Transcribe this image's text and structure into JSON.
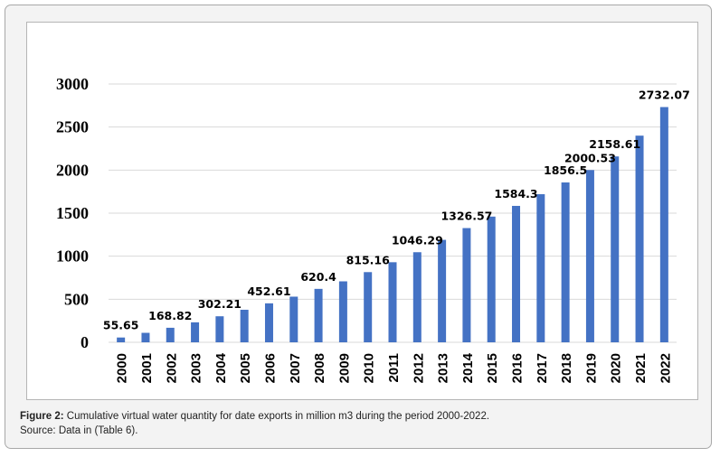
{
  "caption": {
    "label": "Figure 2:",
    "text": "Cumulative virtual water quantity for date exports in million m3 during the period 2000-2022.",
    "source": "Source: Data in (Table 6)."
  },
  "colors": {
    "bar": "#4472c4",
    "grid": "#d9d9d9",
    "text": "#000000"
  },
  "chart_data": {
    "type": "bar",
    "title": "",
    "xlabel": "",
    "ylabel": "",
    "ylim": [
      0,
      3000
    ],
    "yticks": [
      0,
      500,
      1000,
      1500,
      2000,
      2500,
      3000
    ],
    "grid": true,
    "categories": [
      "2000",
      "2001",
      "2002",
      "2003",
      "2004",
      "2005",
      "2006",
      "2007",
      "2008",
      "2009",
      "2010",
      "2011",
      "2012",
      "2013",
      "2014",
      "2015",
      "2016",
      "2017",
      "2018",
      "2019",
      "2020",
      "2021",
      "2022"
    ],
    "values": [
      55.65,
      110,
      168.82,
      232,
      302.21,
      378,
      452.61,
      530,
      620.4,
      708,
      815.16,
      930,
      1046.29,
      1190,
      1326.57,
      1460,
      1584.3,
      1720,
      1856.5,
      2000.53,
      2158.61,
      2400,
      2732.07
    ],
    "data_labels": [
      {
        "index": 0,
        "text": "55.65"
      },
      {
        "index": 2,
        "text": "168.82"
      },
      {
        "index": 4,
        "text": "302.21"
      },
      {
        "index": 6,
        "text": "452.61"
      },
      {
        "index": 8,
        "text": "620.4"
      },
      {
        "index": 10,
        "text": "815.16"
      },
      {
        "index": 12,
        "text": "1046.29"
      },
      {
        "index": 14,
        "text": "1326.57"
      },
      {
        "index": 16,
        "text": "1584.3"
      },
      {
        "index": 18,
        "text": "1856.5"
      },
      {
        "index": 19,
        "text": "2000.53"
      },
      {
        "index": 20,
        "text": "2158.61"
      },
      {
        "index": 22,
        "text": "2732.07"
      }
    ]
  }
}
